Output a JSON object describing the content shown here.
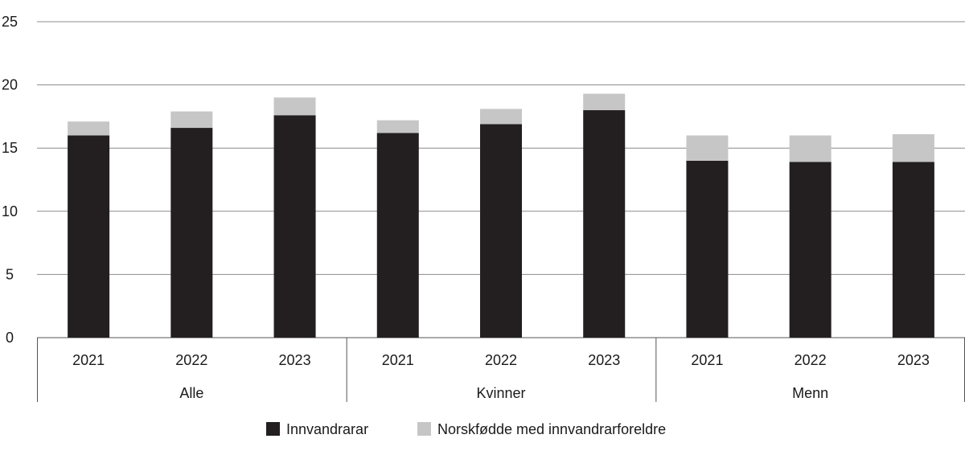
{
  "chart_data": {
    "type": "bar",
    "stacked": true,
    "groups": [
      {
        "label": "Alle",
        "categories": [
          "2021",
          "2022",
          "2023"
        ]
      },
      {
        "label": "Kvinner",
        "categories": [
          "2021",
          "2022",
          "2023"
        ]
      },
      {
        "label": "Menn",
        "categories": [
          "2021",
          "2022",
          "2023"
        ]
      }
    ],
    "series": [
      {
        "name": "Innvandrarar",
        "color": "#231f20",
        "values": [
          16.0,
          16.6,
          17.6,
          16.2,
          16.9,
          18.0,
          14.0,
          13.9,
          13.9
        ]
      },
      {
        "name": "Norskfødde med innvandrarforeldre",
        "color": "#c6c6c6",
        "values": [
          1.1,
          1.3,
          1.4,
          1.0,
          1.2,
          1.3,
          2.0,
          2.1,
          2.2
        ]
      }
    ],
    "y_ticks": [
      "0",
      "5",
      "10",
      "15",
      "20",
      "25"
    ],
    "ylim": [
      0,
      25
    ],
    "grid": true,
    "legend_position": "bottom"
  }
}
